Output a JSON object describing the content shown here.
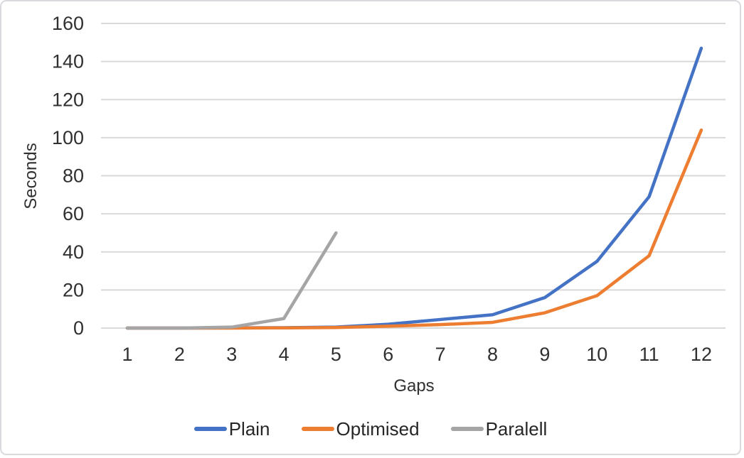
{
  "chart_data": {
    "type": "line",
    "title": "",
    "xlabel": "Gaps",
    "ylabel": "Seconds",
    "x": [
      1,
      2,
      3,
      4,
      5,
      6,
      7,
      8,
      9,
      10,
      11,
      12
    ],
    "ylim": [
      0,
      160
    ],
    "ytick_step": 20,
    "yticks": [
      0,
      20,
      40,
      60,
      80,
      100,
      120,
      140,
      160
    ],
    "grid": true,
    "grid_color": "#d9d9d9",
    "legend_position": "bottom",
    "series": [
      {
        "name": "Plain",
        "color": "#4472C4",
        "values": [
          0,
          0,
          0.1,
          0.2,
          0.5,
          2,
          4.5,
          7,
          16,
          35,
          69,
          147
        ]
      },
      {
        "name": "Optimised",
        "color": "#ED7D31",
        "values": [
          0,
          0,
          0,
          0.1,
          0.3,
          1,
          1.8,
          3,
          8,
          17,
          38,
          104
        ]
      },
      {
        "name": "Paralell",
        "color": "#A5A5A5",
        "values": [
          0,
          0,
          0.5,
          5,
          50,
          null,
          null,
          null,
          null,
          null,
          null,
          null
        ]
      }
    ]
  }
}
